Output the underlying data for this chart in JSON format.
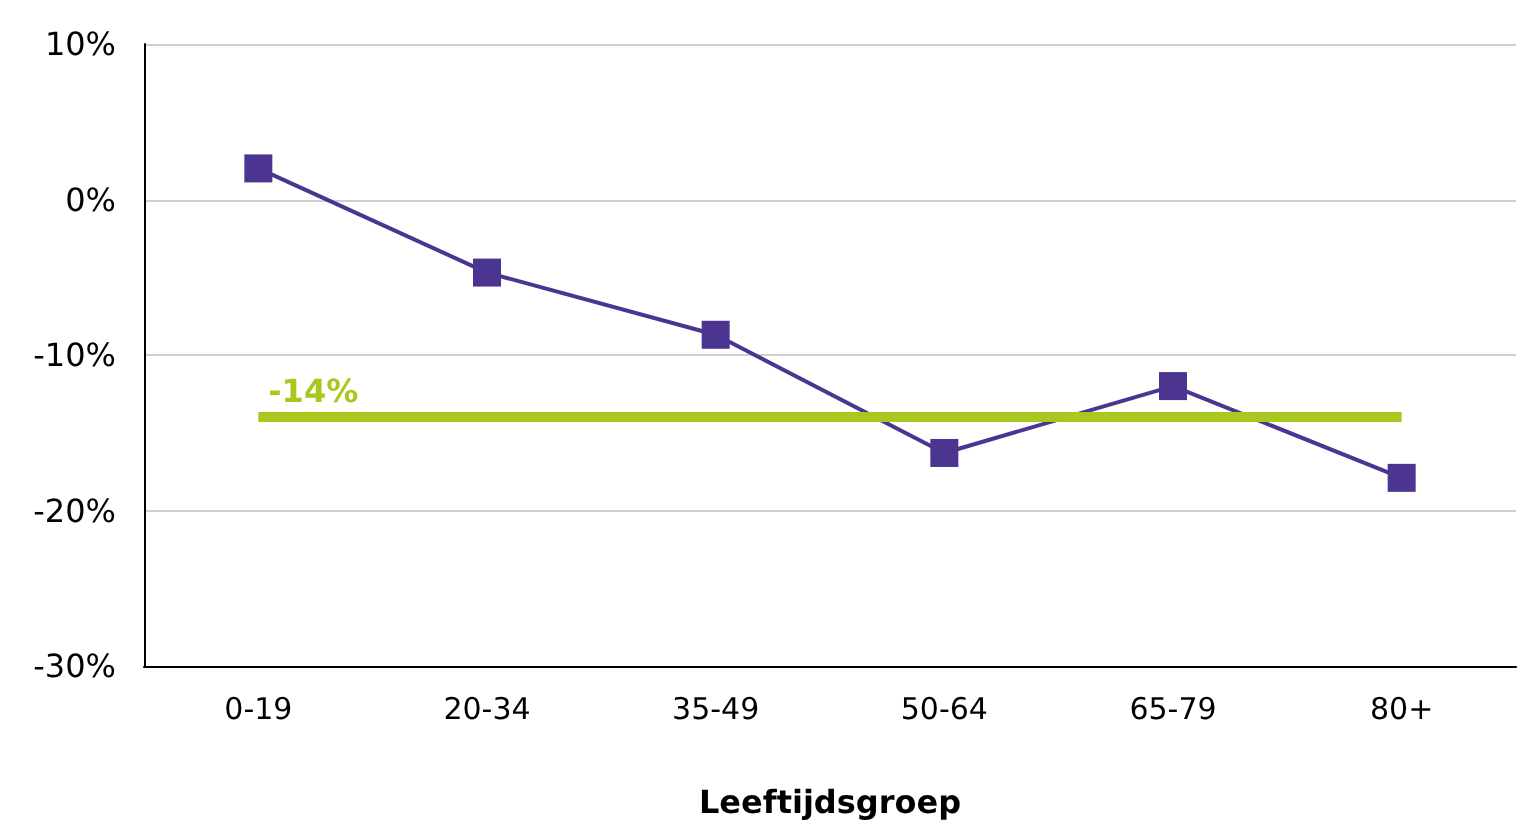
{
  "chart_data": {
    "type": "line",
    "xlabel": "Leeftijdsgroep",
    "categories": [
      "0-19",
      "20-34",
      "35-49",
      "50-64",
      "65-79",
      "80+"
    ],
    "series": [
      {
        "color": "#4b3590",
        "values": [
          2,
          -4.7,
          -8.7,
          -16.3,
          -12,
          -17.9
        ]
      }
    ],
    "ylim": [
      -30,
      10
    ],
    "yticks": [
      {
        "value": -30,
        "label": "-30%"
      },
      {
        "value": -20,
        "label": "-20%"
      },
      {
        "value": -10,
        "label": "-10%"
      },
      {
        "value": 0,
        "label": "0%"
      },
      {
        "value": 10,
        "label": "10%"
      }
    ],
    "ref_lines": [
      {
        "axis": "y",
        "value": -14,
        "label": "-14%",
        "color": "#a8c81e"
      }
    ],
    "grid": "y",
    "marker": "square",
    "line_style": "solid"
  }
}
